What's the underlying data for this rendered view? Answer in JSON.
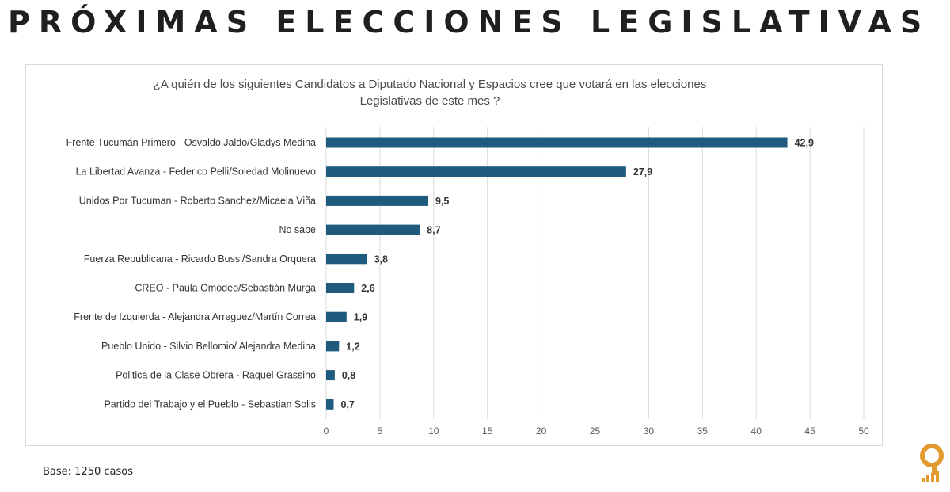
{
  "page": {
    "title": "PRÓXIMAS ELECCIONES LEGISLATIVAS",
    "footnote": "Base: 1250 casos"
  },
  "colors": {
    "bar": "#1f5b7f",
    "grid": "#d9d9d9",
    "logo_orange": "#e39b2f"
  },
  "logo": {
    "name": "brand-logo-icon"
  },
  "chart_data": {
    "type": "bar",
    "orientation": "horizontal",
    "title_lines": [
      "¿A quién de los siguientes Candidatos a Diputado Nacional y Espacios cree que votará en las elecciones",
      "Legislativas de este mes ?"
    ],
    "categories": [
      "Frente Tucumán Primero - Osvaldo Jaldo/Gladys Medina",
      "La Libertad Avanza - Federico Pelli/Soledad Molinuevo",
      "Unidos Por Tucuman - Roberto Sanchez/Micaela Viña",
      "No sabe",
      "Fuerza Republicana - Ricardo Bussi/Sandra Orquera",
      "CREO - Paula Omodeo/Sebastián Murga",
      "Frente de Izquierda - Alejandra Arreguez/Martín Correa",
      "Pueblo Unido - Silvio Bellomio/ Alejandra Medina",
      "Politica de la Clase Obrera - Raquel Grassino",
      "Partido del Trabajo y el Pueblo - Sebastian Solis"
    ],
    "values": [
      42.9,
      27.9,
      9.5,
      8.7,
      3.8,
      2.6,
      1.9,
      1.2,
      0.8,
      0.7
    ],
    "value_labels": [
      "42,9",
      "27,9",
      "9,5",
      "8,7",
      "3,8",
      "2,6",
      "1,9",
      "1,2",
      "0,8",
      "0,7"
    ],
    "xlim": [
      0,
      50
    ],
    "xticks": [
      0,
      5,
      10,
      15,
      20,
      25,
      30,
      35,
      40,
      45,
      50
    ],
    "grid": true,
    "legend": "none"
  }
}
